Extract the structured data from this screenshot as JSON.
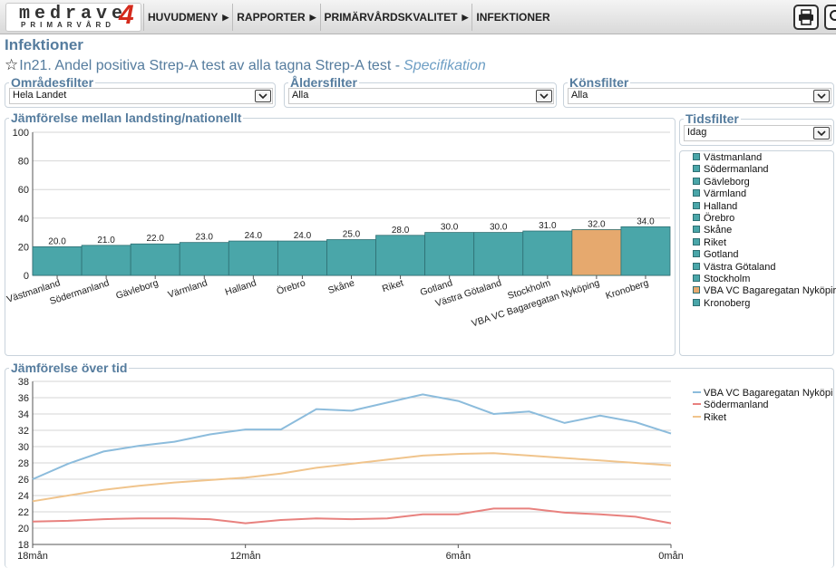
{
  "logo": {
    "main": "medrave",
    "sub": "PRIMARVÅRD",
    "num": "4"
  },
  "nav": {
    "items": [
      "HUVUDMENY",
      "RAPPORTER",
      "PRIMÄRVÅRDSKVALITET",
      "INFEKTIONER"
    ]
  },
  "toolbar": {
    "print_icon": "printer-icon",
    "zoom_icon": "zoom-icon"
  },
  "page": {
    "title": "Infektioner",
    "indicator": "In21. Andel positiva Strep-A test av alla tagna Strep-A test -",
    "spec_link": "Specifikation"
  },
  "filters": {
    "area": {
      "label": "Områdesfilter",
      "value": "Hela Landet"
    },
    "age": {
      "label": "Åldersfilter",
      "value": "Alla"
    },
    "gender": {
      "label": "Könsfilter",
      "value": "Alla"
    },
    "time": {
      "label": "Tidsfilter",
      "value": "Idag"
    }
  },
  "colors": {
    "accent": "#557c9e",
    "bar": "#4aa6a9",
    "bar_highlight": "#e6a96e",
    "bar_border": "#2f6f73"
  },
  "chart_data": [
    {
      "type": "bar",
      "title": "Jämförelse mellan landsting/nationellt",
      "categories": [
        "Västmanland",
        "Södermanland",
        "Gävleborg",
        "Värmland",
        "Halland",
        "Örebro",
        "Skåne",
        "Riket",
        "Gotland",
        "Västra Götaland",
        "Stockholm",
        "VBA VC Bagaregatan Nyköping",
        "Kronoberg"
      ],
      "values": [
        20.0,
        21.0,
        22.0,
        23.0,
        24.0,
        24.0,
        25.0,
        28.0,
        30.0,
        30.0,
        31.0,
        32.0,
        34.0
      ],
      "data_labels": [
        "20.0",
        "21.0",
        "22.0",
        "23.0",
        "24.0",
        "24.0",
        "25.0",
        "28.0",
        "30.0",
        "30.0",
        "31.0",
        "32.0",
        "34.0"
      ],
      "highlight": "VBA VC Bagaregatan Nyköping",
      "legend": [
        "Västmanland",
        "Södermanland",
        "Gävleborg",
        "Värmland",
        "Halland",
        "Örebro",
        "Skåne",
        "Riket",
        "Gotland",
        "Västra Götaland",
        "Stockholm",
        "VBA VC Bagaregatan Nyköpir",
        "Kronoberg"
      ],
      "ylim": [
        0,
        100
      ],
      "yticks": [
        "0",
        "20",
        "40",
        "60",
        "80",
        "100"
      ],
      "grid": true,
      "legend_position": "right"
    },
    {
      "type": "line",
      "title": "Jämförelse över tid",
      "x_tick_labels": [
        "18mån",
        "12mån",
        "6mån",
        "0mån"
      ],
      "x_ticks": [
        18,
        12,
        6,
        0
      ],
      "x": [
        18,
        17,
        16,
        15,
        14,
        13,
        12,
        11,
        10,
        9,
        8,
        7,
        6,
        5,
        4,
        3,
        2,
        1,
        0
      ],
      "ylim": [
        18,
        38
      ],
      "yticks": [
        "18",
        "20",
        "22",
        "24",
        "26",
        "28",
        "30",
        "32",
        "34",
        "36",
        "38"
      ],
      "grid": true,
      "legend_position": "right",
      "series": [
        {
          "name": "VBA VC Bagaregatan Nyköpi",
          "color": "#8cbcdc",
          "values": [
            26.0,
            27.9,
            29.4,
            30.1,
            30.6,
            31.5,
            32.1,
            32.1,
            34.6,
            34.4,
            35.4,
            36.4,
            35.6,
            34.0,
            34.3,
            32.9,
            33.8,
            33.0,
            31.6
          ]
        },
        {
          "name": "Södermanland",
          "color": "#e8817e",
          "values": [
            20.8,
            20.9,
            21.1,
            21.2,
            21.2,
            21.1,
            20.6,
            21.0,
            21.2,
            21.1,
            21.2,
            21.7,
            21.7,
            22.4,
            22.4,
            21.9,
            21.7,
            21.4,
            20.6
          ]
        },
        {
          "name": "Riket",
          "color": "#f0c48c",
          "values": [
            23.3,
            24.0,
            24.7,
            25.2,
            25.6,
            25.9,
            26.2,
            26.7,
            27.4,
            27.9,
            28.4,
            28.9,
            29.1,
            29.2,
            28.9,
            28.6,
            28.3,
            28.0,
            27.7
          ]
        }
      ]
    }
  ]
}
